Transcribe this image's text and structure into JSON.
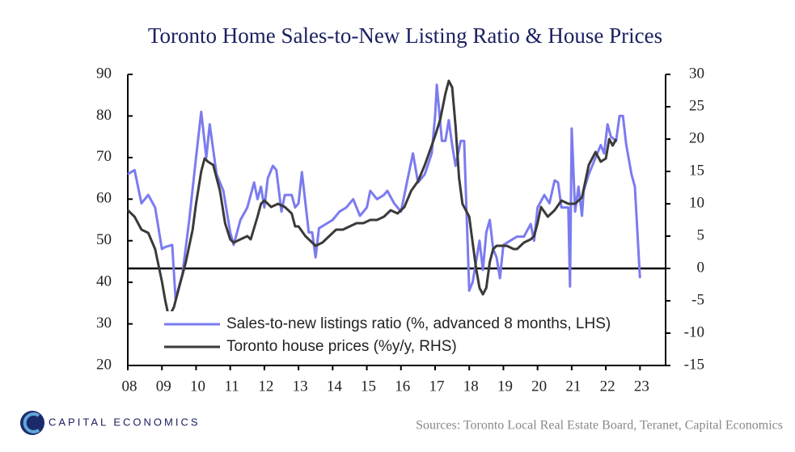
{
  "chart_data": {
    "type": "line",
    "title": "Toronto Home Sales-to-New Listing Ratio & House Prices",
    "xlim": [
      2008,
      2023.75
    ],
    "xticks": [
      {
        "value": 2008,
        "label": "08"
      },
      {
        "value": 2009,
        "label": "09"
      },
      {
        "value": 2010,
        "label": "10"
      },
      {
        "value": 2011,
        "label": "11"
      },
      {
        "value": 2012,
        "label": "12"
      },
      {
        "value": 2013,
        "label": "13"
      },
      {
        "value": 2014,
        "label": "14"
      },
      {
        "value": 2015,
        "label": "15"
      },
      {
        "value": 2016,
        "label": "16"
      },
      {
        "value": 2017,
        "label": "17"
      },
      {
        "value": 2018,
        "label": "18"
      },
      {
        "value": 2019,
        "label": "19"
      },
      {
        "value": 2020,
        "label": "20"
      },
      {
        "value": 2021,
        "label": "21"
      },
      {
        "value": 2022,
        "label": "22"
      },
      {
        "value": 2023,
        "label": "23"
      }
    ],
    "ylim": [
      20,
      90
    ],
    "yticks": [
      20,
      30,
      40,
      50,
      60,
      70,
      80,
      90
    ],
    "y2lim": [
      -15,
      30
    ],
    "y2ticks": [
      -15,
      -10,
      -5,
      0,
      5,
      10,
      15,
      20,
      25,
      30
    ],
    "y2_zero_line": true,
    "grid": false,
    "legend": "lower left",
    "series": [
      {
        "name": "Sales-to-new listings ratio (%, advanced 8 months, LHS)",
        "color": "#7b7bef",
        "axis": "y",
        "x": [
          2008.0,
          2008.2,
          2008.4,
          2008.6,
          2008.8,
          2009.0,
          2009.1,
          2009.3,
          2009.4,
          2009.6,
          2009.8,
          2010.0,
          2010.15,
          2010.3,
          2010.4,
          2010.6,
          2010.8,
          2011.0,
          2011.1,
          2011.3,
          2011.5,
          2011.7,
          2011.8,
          2011.9,
          2012.0,
          2012.1,
          2012.25,
          2012.35,
          2012.5,
          2012.6,
          2012.8,
          2012.9,
          2013.0,
          2013.1,
          2013.3,
          2013.4,
          2013.5,
          2013.6,
          2013.8,
          2014.0,
          2014.2,
          2014.4,
          2014.6,
          2014.8,
          2015.0,
          2015.1,
          2015.3,
          2015.5,
          2015.6,
          2015.8,
          2016.0,
          2016.2,
          2016.35,
          2016.5,
          2016.7,
          2016.9,
          2017.0,
          2017.05,
          2017.2,
          2017.3,
          2017.4,
          2017.5,
          2017.6,
          2017.75,
          2017.85,
          2018.0,
          2018.1,
          2018.2,
          2018.3,
          2018.4,
          2018.5,
          2018.6,
          2018.7,
          2018.8,
          2018.9,
          2019.0,
          2019.2,
          2019.4,
          2019.6,
          2019.8,
          2019.9,
          2020.0,
          2020.2,
          2020.35,
          2020.5,
          2020.6,
          2020.7,
          2020.9,
          2020.95,
          2021.0,
          2021.1,
          2021.2,
          2021.3,
          2021.35,
          2021.5,
          2021.7,
          2021.85,
          2021.95,
          2022.05,
          2022.15,
          2022.3,
          2022.4,
          2022.5,
          2022.6,
          2022.75,
          2022.85,
          2023.0
        ],
        "values": [
          66,
          67,
          59,
          61,
          58,
          48,
          48.5,
          49,
          36,
          42,
          55,
          70,
          81,
          70,
          78,
          66,
          62,
          52,
          49,
          55,
          58,
          64,
          60,
          63,
          58,
          65,
          68,
          67,
          57,
          61,
          61,
          58,
          59,
          66.5,
          52,
          52,
          46,
          53,
          54,
          55,
          57,
          58,
          60,
          56,
          58,
          62,
          60,
          61,
          62,
          59,
          57,
          65,
          71,
          64,
          66,
          71,
          80,
          87.5,
          74,
          74,
          79,
          73,
          68,
          74,
          74,
          38,
          40,
          45,
          50,
          43,
          52,
          55,
          48,
          46,
          41,
          49,
          50,
          51,
          51,
          54,
          50,
          58,
          61,
          59,
          64.5,
          64,
          58,
          58,
          39,
          77,
          57,
          63,
          56,
          62,
          66,
          70,
          73,
          71,
          78,
          75,
          74,
          80,
          80,
          73,
          66,
          63,
          41
        ]
      },
      {
        "name": "Toronto house prices (%y/y, RHS)",
        "color": "#3a3a3a",
        "axis": "y2",
        "x": [
          2008.0,
          2008.2,
          2008.4,
          2008.6,
          2008.8,
          2009.0,
          2009.1,
          2009.2,
          2009.35,
          2009.5,
          2009.7,
          2009.9,
          2010.0,
          2010.15,
          2010.25,
          2010.35,
          2010.5,
          2010.7,
          2010.85,
          2011.0,
          2011.1,
          2011.3,
          2011.5,
          2011.6,
          2011.8,
          2011.9,
          2012.0,
          2012.2,
          2012.4,
          2012.6,
          2012.8,
          2012.9,
          2013.0,
          2013.2,
          2013.4,
          2013.5,
          2013.7,
          2013.9,
          2014.1,
          2014.3,
          2014.5,
          2014.7,
          2014.9,
          2015.1,
          2015.3,
          2015.5,
          2015.7,
          2015.9,
          2016.1,
          2016.3,
          2016.5,
          2016.7,
          2016.9,
          2017.0,
          2017.15,
          2017.3,
          2017.4,
          2017.5,
          2017.6,
          2017.7,
          2017.8,
          2017.9,
          2018.0,
          2018.1,
          2018.2,
          2018.3,
          2018.4,
          2018.5,
          2018.6,
          2018.7,
          2018.8,
          2018.9,
          2019.1,
          2019.3,
          2019.4,
          2019.6,
          2019.8,
          2019.9,
          2020.0,
          2020.1,
          2020.3,
          2020.5,
          2020.7,
          2020.9,
          2021.1,
          2021.3,
          2021.5,
          2021.7,
          2021.85,
          2022.0,
          2022.1,
          2022.2,
          2022.3
        ],
        "values": [
          9,
          8,
          6,
          5.5,
          3,
          -2,
          -5,
          -7.5,
          -6,
          -3,
          1,
          6,
          10,
          15,
          17,
          16.5,
          16,
          12,
          7,
          4.5,
          4,
          4.5,
          5,
          4.5,
          8,
          10,
          10.5,
          9.5,
          10,
          9.5,
          8.5,
          6.5,
          6.5,
          5,
          4,
          3.5,
          4,
          5,
          6,
          6,
          6.5,
          7,
          7,
          7.5,
          7.5,
          8,
          9,
          8.5,
          9.5,
          12,
          13.5,
          16,
          19,
          20.5,
          23,
          27,
          29,
          28,
          22,
          14,
          10,
          9,
          8,
          4,
          0,
          -3,
          -4,
          -3,
          1,
          3,
          3.5,
          3.5,
          3.5,
          3,
          3,
          4,
          4.5,
          5,
          7,
          9.5,
          8,
          9,
          10.5,
          10,
          10,
          11,
          16,
          18,
          16.5,
          17,
          20,
          19,
          20
        ]
      }
    ]
  },
  "footer": {
    "brand": "CAPITAL ECONOMICS",
    "source": "Sources:  Toronto Local Real Estate Board,  Teranet, Capital Economics"
  }
}
